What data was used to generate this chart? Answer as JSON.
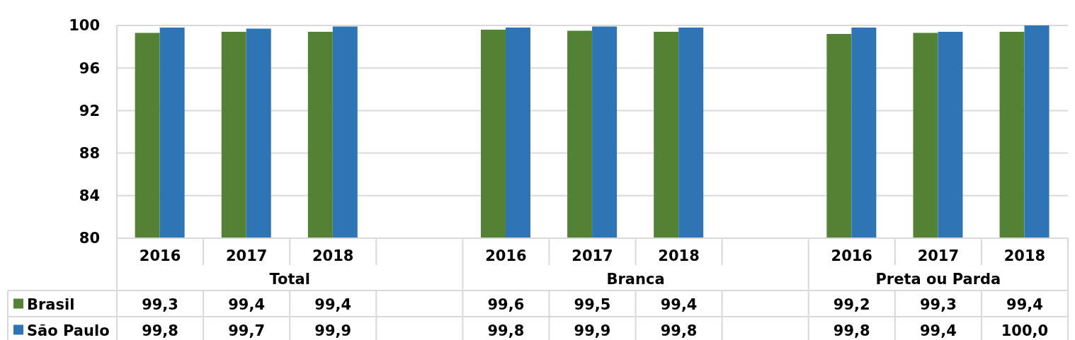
{
  "chart_data": {
    "type": "bar",
    "categories": [
      "2016",
      "2017",
      "2018",
      null,
      "2016",
      "2017",
      "2018",
      null,
      "2016",
      "2017",
      "2018"
    ],
    "series": [
      {
        "name": "Brasil",
        "color": "#548235",
        "values": [
          99.3,
          99.4,
          99.4,
          null,
          99.6,
          99.5,
          99.4,
          null,
          99.2,
          99.3,
          99.4
        ],
        "value_labels": [
          "99,3",
          "99,4",
          "99,4",
          null,
          "99,6",
          "99,5",
          "99,4",
          null,
          "99,2",
          "99,3",
          "99,4"
        ]
      },
      {
        "name": "São Paulo",
        "color": "#2e75b6",
        "values": [
          99.8,
          99.7,
          99.9,
          null,
          99.8,
          99.9,
          99.8,
          null,
          99.8,
          99.4,
          100.0
        ],
        "value_labels": [
          "99,8",
          "99,7",
          "99,9",
          null,
          "99,8",
          "99,9",
          "99,8",
          null,
          "99,8",
          "99,4",
          "100,0"
        ]
      }
    ],
    "annotations": [
      "Total",
      "Branca",
      "Preta ou Parda"
    ],
    "ylim": [
      80,
      100
    ],
    "yticks": [
      80,
      84,
      88,
      92,
      96,
      100
    ],
    "grid": "y",
    "legend": "bottom left"
  }
}
